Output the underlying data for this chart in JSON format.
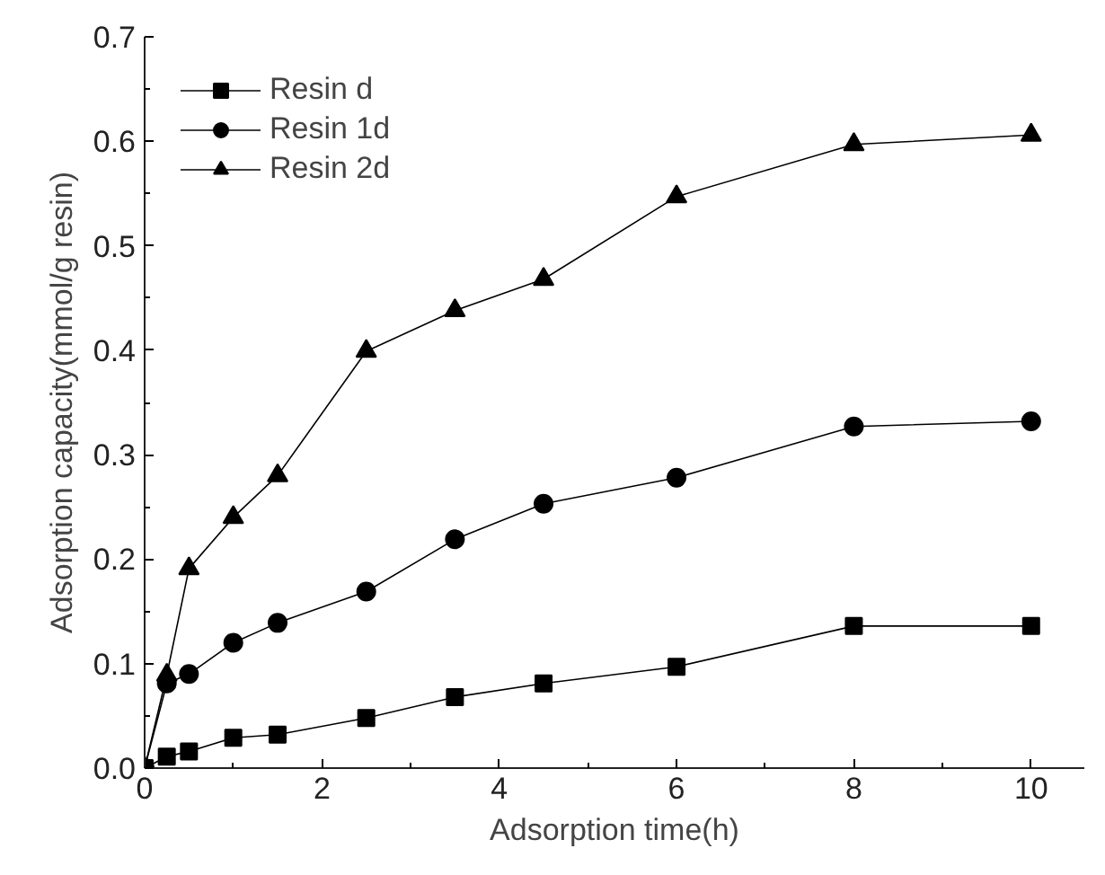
{
  "chart_data": {
    "type": "line",
    "xlabel": "Adsorption time(h)",
    "ylabel": "Adsorption capacity(mmol/g resin)",
    "x": [
      0,
      0.25,
      0.5,
      1,
      1.5,
      2.5,
      3.5,
      4.5,
      6,
      8,
      10
    ],
    "series": [
      {
        "name": "Resin d",
        "color": "#000000",
        "marker": "square",
        "values": [
          0,
          0.011,
          0.016,
          0.029,
          0.032,
          0.048,
          0.068,
          0.081,
          0.097,
          0.136,
          0.136
        ]
      },
      {
        "name": "Resin 1d",
        "color": "#000000",
        "marker": "circle",
        "values": [
          0,
          0.081,
          0.09,
          0.12,
          0.139,
          0.169,
          0.219,
          0.253,
          0.278,
          0.327,
          0.332
        ]
      },
      {
        "name": "Resin 2d",
        "color": "#000000",
        "marker": "triangle",
        "values": [
          0,
          0.089,
          0.191,
          0.24,
          0.28,
          0.399,
          0.438,
          0.468,
          0.547,
          0.597,
          0.606
        ]
      }
    ],
    "xlim": [
      0,
      10.6
    ],
    "xticks": [
      0,
      2,
      4,
      6,
      8,
      10
    ],
    "ylim": [
      0,
      0.7
    ],
    "yticks": [
      {
        "value": 0,
        "label": "0.0"
      },
      0.1,
      0.2,
      0.3,
      0.4,
      0.5,
      0.6,
      0.7
    ],
    "grid": false,
    "legend": "top left",
    "line_style": "solid"
  }
}
